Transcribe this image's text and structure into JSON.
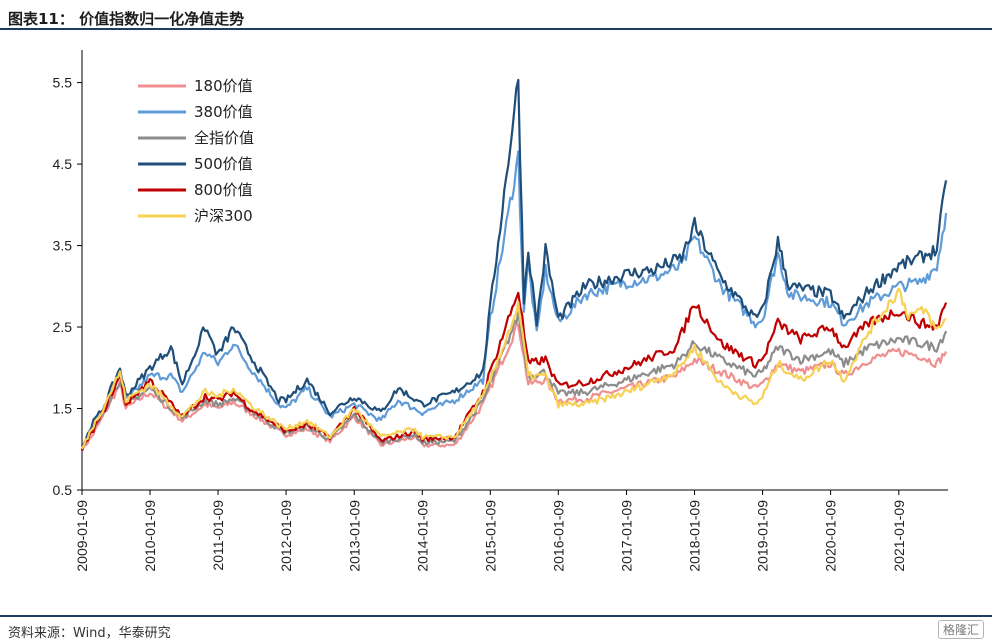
{
  "header": {
    "title": "图表11：  价值指数归一化净值走势"
  },
  "footer": {
    "source": "资料来源：Wind，华泰研究",
    "watermark": "格隆汇"
  },
  "chart_data": {
    "type": "line",
    "title": "图表11：  价值指数归一化净值走势",
    "xlabel": "",
    "ylabel": "",
    "x_ticks": [
      "2009-01-09",
      "2010-01-09",
      "2011-01-09",
      "2012-01-09",
      "2013-01-09",
      "2014-01-09",
      "2015-01-09",
      "2016-01-09",
      "2017-01-09",
      "2018-01-09",
      "2019-01-09",
      "2020-01-09",
      "2021-01-09"
    ],
    "y_ticks": [
      "0.5",
      "1.5",
      "2.5",
      "3.5",
      "4.5",
      "5.5"
    ],
    "ylim": [
      0.5,
      5.9
    ],
    "xlim": [
      "2009-01-09",
      "2021-09-30"
    ],
    "grid": false,
    "legend_position": "top-left",
    "series": [
      {
        "name": "180价值",
        "color": "#ef8f8f",
        "points": [
          [
            "2009-01-09",
            1.0
          ],
          [
            "2009-03-01",
            1.15
          ],
          [
            "2009-05-01",
            1.4
          ],
          [
            "2009-08-01",
            1.8
          ],
          [
            "2009-09-01",
            1.5
          ],
          [
            "2010-01-09",
            1.7
          ],
          [
            "2010-07-01",
            1.35
          ],
          [
            "2010-11-01",
            1.55
          ],
          [
            "2011-01-09",
            1.5
          ],
          [
            "2011-04-01",
            1.58
          ],
          [
            "2011-07-01",
            1.45
          ],
          [
            "2011-12-01",
            1.22
          ],
          [
            "2012-01-09",
            1.18
          ],
          [
            "2012-05-01",
            1.25
          ],
          [
            "2012-09-01",
            1.1
          ],
          [
            "2013-01-09",
            1.4
          ],
          [
            "2013-06-01",
            1.05
          ],
          [
            "2013-12-01",
            1.15
          ],
          [
            "2014-01-09",
            1.05
          ],
          [
            "2014-07-01",
            1.05
          ],
          [
            "2014-12-01",
            1.55
          ],
          [
            "2015-01-09",
            1.75
          ],
          [
            "2015-06-08",
            2.55
          ],
          [
            "2015-08-01",
            1.8
          ],
          [
            "2015-11-01",
            1.85
          ],
          [
            "2016-01-09",
            1.6
          ],
          [
            "2016-06-01",
            1.62
          ],
          [
            "2017-01-09",
            1.75
          ],
          [
            "2017-10-01",
            1.9
          ],
          [
            "2018-01-09",
            2.1
          ],
          [
            "2018-06-01",
            1.95
          ],
          [
            "2018-12-01",
            1.75
          ],
          [
            "2019-01-09",
            1.8
          ],
          [
            "2019-04-01",
            2.05
          ],
          [
            "2019-08-01",
            1.95
          ],
          [
            "2020-01-09",
            2.05
          ],
          [
            "2020-03-20",
            1.9
          ],
          [
            "2020-08-01",
            2.1
          ],
          [
            "2021-01-09",
            2.2
          ],
          [
            "2021-05-01",
            2.15
          ],
          [
            "2021-08-01",
            2.05
          ],
          [
            "2021-09-20",
            2.2
          ]
        ]
      },
      {
        "name": "380价值",
        "color": "#5e9bd7",
        "points": [
          [
            "2009-01-09",
            1.0
          ],
          [
            "2009-03-01",
            1.25
          ],
          [
            "2009-05-01",
            1.45
          ],
          [
            "2009-08-01",
            1.95
          ],
          [
            "2009-09-01",
            1.6
          ],
          [
            "2010-01-09",
            1.9
          ],
          [
            "2010-05-01",
            1.9
          ],
          [
            "2010-07-01",
            1.7
          ],
          [
            "2010-11-01",
            2.2
          ],
          [
            "2011-01-09",
            2.05
          ],
          [
            "2011-04-01",
            2.3
          ],
          [
            "2011-07-01",
            2.0
          ],
          [
            "2011-12-01",
            1.55
          ],
          [
            "2012-01-09",
            1.5
          ],
          [
            "2012-05-01",
            1.75
          ],
          [
            "2012-09-01",
            1.4
          ],
          [
            "2013-01-09",
            1.55
          ],
          [
            "2013-06-01",
            1.35
          ],
          [
            "2013-09-01",
            1.6
          ],
          [
            "2014-01-09",
            1.45
          ],
          [
            "2014-07-01",
            1.6
          ],
          [
            "2014-12-01",
            1.85
          ],
          [
            "2015-01-09",
            2.6
          ],
          [
            "2015-06-08",
            4.6
          ],
          [
            "2015-07-08",
            2.7
          ],
          [
            "2015-08-01",
            3.3
          ],
          [
            "2015-09-15",
            2.4
          ],
          [
            "2015-11-01",
            3.2
          ],
          [
            "2016-01-09",
            2.55
          ],
          [
            "2016-06-01",
            2.9
          ],
          [
            "2017-01-09",
            3.05
          ],
          [
            "2017-06-01",
            3.1
          ],
          [
            "2017-11-01",
            3.25
          ],
          [
            "2018-01-09",
            3.6
          ],
          [
            "2018-06-01",
            3.0
          ],
          [
            "2018-12-01",
            2.55
          ],
          [
            "2019-01-09",
            2.6
          ],
          [
            "2019-04-01",
            3.4
          ],
          [
            "2019-06-01",
            2.9
          ],
          [
            "2020-01-09",
            2.8
          ],
          [
            "2020-03-20",
            2.55
          ],
          [
            "2020-08-01",
            2.8
          ],
          [
            "2021-01-09",
            3.0
          ],
          [
            "2021-05-01",
            3.05
          ],
          [
            "2021-08-01",
            3.25
          ],
          [
            "2021-09-20",
            3.9
          ]
        ]
      },
      {
        "name": "全指价值",
        "color": "#8c8c8c",
        "points": [
          [
            "2009-01-09",
            1.0
          ],
          [
            "2009-03-01",
            1.2
          ],
          [
            "2009-05-01",
            1.45
          ],
          [
            "2009-08-01",
            1.85
          ],
          [
            "2009-09-01",
            1.55
          ],
          [
            "2010-01-09",
            1.75
          ],
          [
            "2010-07-01",
            1.38
          ],
          [
            "2010-11-01",
            1.6
          ],
          [
            "2011-01-09",
            1.55
          ],
          [
            "2011-04-01",
            1.62
          ],
          [
            "2011-07-01",
            1.48
          ],
          [
            "2011-12-01",
            1.25
          ],
          [
            "2012-01-09",
            1.2
          ],
          [
            "2012-05-01",
            1.28
          ],
          [
            "2012-09-01",
            1.12
          ],
          [
            "2013-01-09",
            1.42
          ],
          [
            "2013-06-01",
            1.08
          ],
          [
            "2013-12-01",
            1.18
          ],
          [
            "2014-01-09",
            1.08
          ],
          [
            "2014-07-01",
            1.1
          ],
          [
            "2014-12-01",
            1.6
          ],
          [
            "2015-01-09",
            1.8
          ],
          [
            "2015-06-08",
            2.65
          ],
          [
            "2015-08-01",
            1.9
          ],
          [
            "2015-11-01",
            1.95
          ],
          [
            "2016-01-09",
            1.68
          ],
          [
            "2016-06-01",
            1.7
          ],
          [
            "2017-01-09",
            1.85
          ],
          [
            "2017-10-01",
            2.05
          ],
          [
            "2018-01-09",
            2.3
          ],
          [
            "2018-06-01",
            2.1
          ],
          [
            "2018-12-01",
            1.9
          ],
          [
            "2019-01-09",
            1.95
          ],
          [
            "2019-04-01",
            2.25
          ],
          [
            "2019-08-01",
            2.1
          ],
          [
            "2020-01-09",
            2.2
          ],
          [
            "2020-03-20",
            2.05
          ],
          [
            "2020-08-01",
            2.25
          ],
          [
            "2021-01-09",
            2.35
          ],
          [
            "2021-05-01",
            2.3
          ],
          [
            "2021-08-01",
            2.25
          ],
          [
            "2021-09-20",
            2.45
          ]
        ]
      },
      {
        "name": "500价值",
        "color": "#1f4e79",
        "points": [
          [
            "2009-01-09",
            1.0
          ],
          [
            "2009-03-01",
            1.3
          ],
          [
            "2009-05-01",
            1.5
          ],
          [
            "2009-08-01",
            2.0
          ],
          [
            "2009-09-01",
            1.65
          ],
          [
            "2010-01-09",
            2.0
          ],
          [
            "2010-05-01",
            2.25
          ],
          [
            "2010-07-01",
            1.8
          ],
          [
            "2010-11-01",
            2.5
          ],
          [
            "2011-01-09",
            2.15
          ],
          [
            "2011-04-01",
            2.5
          ],
          [
            "2011-07-01",
            2.15
          ],
          [
            "2011-12-01",
            1.6
          ],
          [
            "2012-01-09",
            1.6
          ],
          [
            "2012-05-01",
            1.85
          ],
          [
            "2012-09-01",
            1.45
          ],
          [
            "2013-01-09",
            1.65
          ],
          [
            "2013-06-01",
            1.45
          ],
          [
            "2013-09-01",
            1.75
          ],
          [
            "2014-01-09",
            1.55
          ],
          [
            "2014-07-01",
            1.7
          ],
          [
            "2014-12-01",
            1.95
          ],
          [
            "2015-01-09",
            2.75
          ],
          [
            "2015-06-08",
            5.55
          ],
          [
            "2015-07-08",
            2.85
          ],
          [
            "2015-08-01",
            3.45
          ],
          [
            "2015-09-15",
            2.55
          ],
          [
            "2015-11-01",
            3.45
          ],
          [
            "2016-01-09",
            2.6
          ],
          [
            "2016-06-01",
            3.0
          ],
          [
            "2017-01-09",
            3.15
          ],
          [
            "2017-06-01",
            3.2
          ],
          [
            "2017-11-01",
            3.35
          ],
          [
            "2018-01-09",
            3.75
          ],
          [
            "2018-06-01",
            3.1
          ],
          [
            "2018-12-01",
            2.6
          ],
          [
            "2019-01-09",
            2.7
          ],
          [
            "2019-04-01",
            3.55
          ],
          [
            "2019-06-01",
            3.0
          ],
          [
            "2020-01-09",
            2.9
          ],
          [
            "2020-03-20",
            2.6
          ],
          [
            "2020-08-01",
            2.95
          ],
          [
            "2021-01-09",
            3.25
          ],
          [
            "2021-05-01",
            3.35
          ],
          [
            "2021-08-01",
            3.45
          ],
          [
            "2021-09-20",
            4.3
          ]
        ]
      },
      {
        "name": "800价值",
        "color": "#c00000",
        "points": [
          [
            "2009-01-09",
            1.0
          ],
          [
            "2009-03-01",
            1.2
          ],
          [
            "2009-05-01",
            1.45
          ],
          [
            "2009-08-01",
            1.9
          ],
          [
            "2009-09-01",
            1.55
          ],
          [
            "2010-01-09",
            1.85
          ],
          [
            "2010-07-01",
            1.4
          ],
          [
            "2010-11-01",
            1.65
          ],
          [
            "2011-01-09",
            1.6
          ],
          [
            "2011-04-01",
            1.7
          ],
          [
            "2011-07-01",
            1.5
          ],
          [
            "2011-12-01",
            1.28
          ],
          [
            "2012-01-09",
            1.22
          ],
          [
            "2012-05-01",
            1.3
          ],
          [
            "2012-09-01",
            1.15
          ],
          [
            "2013-01-09",
            1.5
          ],
          [
            "2013-06-01",
            1.1
          ],
          [
            "2013-12-01",
            1.22
          ],
          [
            "2014-01-09",
            1.12
          ],
          [
            "2014-07-01",
            1.15
          ],
          [
            "2014-12-01",
            1.7
          ],
          [
            "2015-01-09",
            1.95
          ],
          [
            "2015-06-08",
            2.95
          ],
          [
            "2015-08-01",
            2.05
          ],
          [
            "2015-11-01",
            2.1
          ],
          [
            "2016-01-09",
            1.78
          ],
          [
            "2016-06-01",
            1.82
          ],
          [
            "2017-01-09",
            2.0
          ],
          [
            "2017-10-01",
            2.25
          ],
          [
            "2018-01-09",
            2.8
          ],
          [
            "2018-06-01",
            2.3
          ],
          [
            "2018-12-01",
            2.05
          ],
          [
            "2019-01-09",
            2.1
          ],
          [
            "2019-04-01",
            2.55
          ],
          [
            "2019-08-01",
            2.35
          ],
          [
            "2020-01-09",
            2.5
          ],
          [
            "2020-03-20",
            2.25
          ],
          [
            "2020-08-01",
            2.55
          ],
          [
            "2021-01-09",
            2.7
          ],
          [
            "2021-05-01",
            2.55
          ],
          [
            "2021-08-01",
            2.5
          ],
          [
            "2021-09-20",
            2.8
          ]
        ]
      },
      {
        "name": "沪深300",
        "color": "#f7d154",
        "points": [
          [
            "2009-01-09",
            1.0
          ],
          [
            "2009-03-01",
            1.25
          ],
          [
            "2009-05-01",
            1.5
          ],
          [
            "2009-08-01",
            1.95
          ],
          [
            "2009-09-01",
            1.6
          ],
          [
            "2010-01-09",
            1.8
          ],
          [
            "2010-07-01",
            1.4
          ],
          [
            "2010-11-01",
            1.7
          ],
          [
            "2011-01-09",
            1.65
          ],
          [
            "2011-04-01",
            1.75
          ],
          [
            "2011-07-01",
            1.55
          ],
          [
            "2011-12-01",
            1.3
          ],
          [
            "2012-01-09",
            1.25
          ],
          [
            "2012-05-01",
            1.35
          ],
          [
            "2012-09-01",
            1.15
          ],
          [
            "2013-01-09",
            1.5
          ],
          [
            "2013-06-01",
            1.15
          ],
          [
            "2013-12-01",
            1.25
          ],
          [
            "2014-01-09",
            1.15
          ],
          [
            "2014-07-01",
            1.15
          ],
          [
            "2014-12-01",
            1.65
          ],
          [
            "2015-01-09",
            1.85
          ],
          [
            "2015-06-08",
            2.75
          ],
          [
            "2015-08-01",
            1.9
          ],
          [
            "2015-11-01",
            1.9
          ],
          [
            "2016-01-09",
            1.55
          ],
          [
            "2016-06-01",
            1.55
          ],
          [
            "2017-01-09",
            1.7
          ],
          [
            "2017-10-01",
            1.95
          ],
          [
            "2018-01-09",
            2.25
          ],
          [
            "2018-06-01",
            1.8
          ],
          [
            "2018-12-01",
            1.55
          ],
          [
            "2019-01-09",
            1.65
          ],
          [
            "2019-04-01",
            2.05
          ],
          [
            "2019-08-01",
            1.85
          ],
          [
            "2020-01-09",
            2.1
          ],
          [
            "2020-03-20",
            1.85
          ],
          [
            "2020-08-01",
            2.45
          ],
          [
            "2021-01-09",
            2.95
          ],
          [
            "2021-03-01",
            2.65
          ],
          [
            "2021-06-01",
            2.7
          ],
          [
            "2021-08-01",
            2.45
          ],
          [
            "2021-09-20",
            2.6
          ]
        ]
      }
    ]
  }
}
